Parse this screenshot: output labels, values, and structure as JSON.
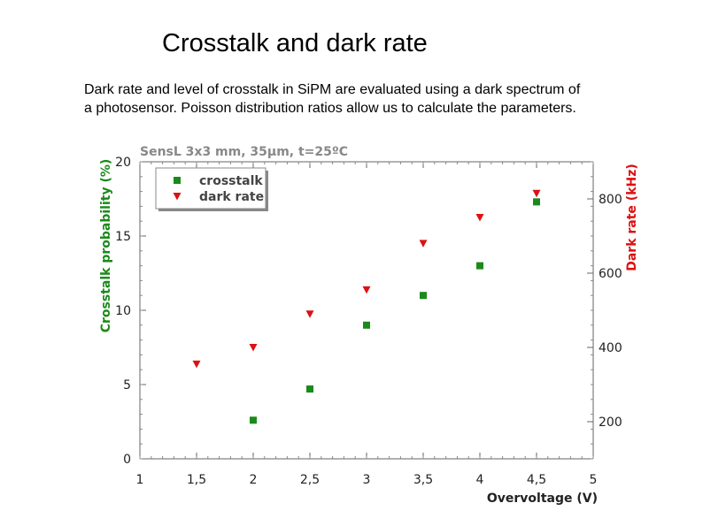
{
  "slide": {
    "title": "Crosstalk and dark rate",
    "description_line1": "Dark rate and level of crosstalk in SiPM are evaluated using a dark spectrum of",
    "description_line2": "a photosensor. Poisson distribution ratios allow us to calculate the parameters."
  },
  "chart_data": {
    "type": "scatter",
    "title": "SensL 3x3 mm, 35µm, t=25ºC",
    "xlabel": "Overvoltage (V)",
    "ylabel": "Crosstalk probability (%)",
    "y2label": "Dark rate (kHz)",
    "xlim": [
      1,
      5
    ],
    "ylim": [
      0,
      20
    ],
    "y2lim": [
      100,
      900
    ],
    "x_ticks": [
      1,
      1.5,
      2,
      2.5,
      3,
      3.5,
      4,
      4.5,
      5
    ],
    "x_tick_labels": [
      "1",
      "1,5",
      "2",
      "2,5",
      "3",
      "3,5",
      "4",
      "4,5",
      "5"
    ],
    "y_ticks": [
      0,
      5,
      10,
      15,
      20
    ],
    "y_tick_labels": [
      "0",
      "5",
      "10",
      "15",
      "20"
    ],
    "y2_ticks": [
      200,
      400,
      600,
      800
    ],
    "y2_tick_labels": [
      "200",
      "400",
      "600",
      "800"
    ],
    "legend_position": "top-left",
    "grid": false,
    "colors": {
      "crosstalk": "#1a8a1a",
      "dark_rate": "#dd1111",
      "ylabel": "#1a8a1a",
      "y2label": "#dd1111"
    },
    "series": [
      {
        "name": "crosstalk",
        "axis": "left",
        "marker": "square",
        "x": [
          2,
          2.5,
          3,
          3.5,
          4,
          4.5
        ],
        "y": [
          2.6,
          4.7,
          9.0,
          11.0,
          13.0,
          17.3
        ]
      },
      {
        "name": "dark rate",
        "axis": "right",
        "marker": "triangle-down",
        "x": [
          1.5,
          2,
          2.5,
          3,
          3.5,
          4,
          4.5
        ],
        "y": [
          355,
          400,
          490,
          555,
          680,
          750,
          815
        ]
      }
    ]
  }
}
